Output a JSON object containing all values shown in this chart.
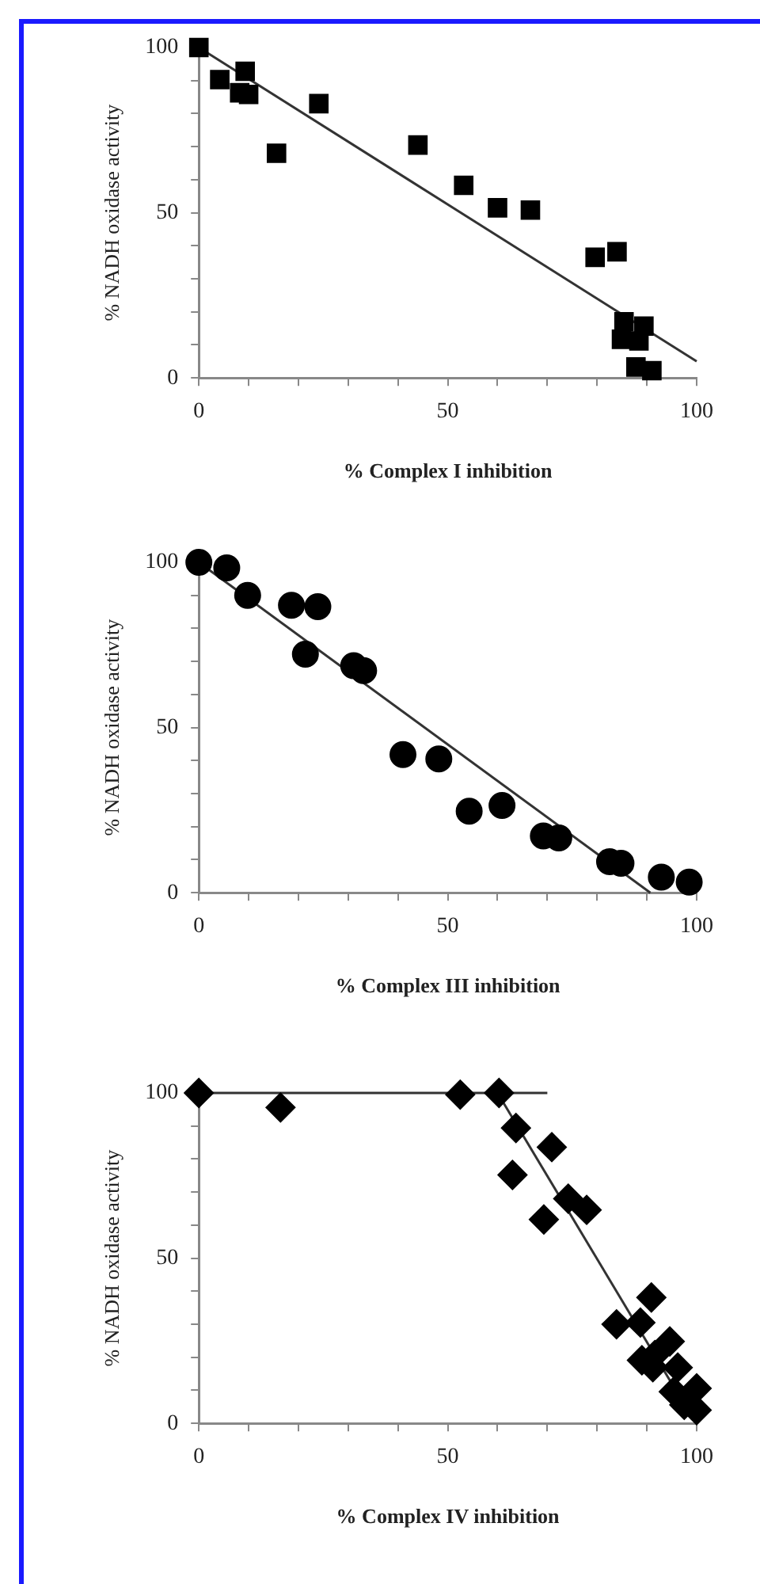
{
  "chart_data": [
    {
      "type": "scatter",
      "xlabel": "% Complex I inhibition",
      "ylabel": "% NADH oxidase activity",
      "xlim": [
        0,
        100
      ],
      "ylim": [
        0,
        100
      ],
      "xticks": [
        0,
        {
          "value": 10,
          "label": null
        },
        {
          "value": 20,
          "label": null
        },
        {
          "value": 30,
          "label": null
        },
        {
          "value": 40,
          "label": null
        },
        50,
        {
          "value": 60,
          "label": null
        },
        {
          "value": 70,
          "label": null
        },
        {
          "value": 80,
          "label": null
        },
        {
          "value": 90,
          "label": null
        },
        100
      ],
      "yticks": [
        0,
        {
          "value": 10,
          "label": null
        },
        {
          "value": 20,
          "label": null
        },
        {
          "value": 30,
          "label": null
        },
        {
          "value": 40,
          "label": null
        },
        50,
        {
          "value": 60,
          "label": null
        },
        {
          "value": 70,
          "label": null
        },
        {
          "value": 80,
          "label": null
        },
        {
          "value": 90,
          "label": null
        },
        100
      ],
      "series": [
        {
          "color": "#000000",
          "marker": "square",
          "x": [
            0,
            4.2,
            9.3,
            8.2,
            10,
            15.6,
            24.1,
            null,
            44,
            53.2,
            60,
            66.6,
            79.6,
            84,
            85.4,
            89.4,
            84.9,
            88.4,
            null,
            87.8,
            91
          ],
          "values": [
            100,
            90.3,
            92.8,
            86.3,
            85.8,
            68,
            83,
            null,
            70.5,
            58.3,
            51.5,
            50.8,
            36.5,
            38.2,
            17,
            15.7,
            11.7,
            11.2,
            null,
            3.3,
            2.2
          ]
        },
        {
          "type": "line",
          "color": "#333333",
          "marker": "none",
          "x": [
            0,
            100
          ],
          "values": [
            100,
            5
          ]
        }
      ]
    },
    {
      "type": "scatter",
      "xlabel": "% Complex III inhibition",
      "ylabel": "% NADH oxidase activity",
      "xlim": [
        0,
        100
      ],
      "ylim": [
        0,
        100
      ],
      "xticks": [
        0,
        {
          "value": 10,
          "label": null
        },
        {
          "value": 20,
          "label": null
        },
        {
          "value": 30,
          "label": null
        },
        {
          "value": 40,
          "label": null
        },
        50,
        {
          "value": 60,
          "label": null
        },
        {
          "value": 70,
          "label": null
        },
        {
          "value": 80,
          "label": null
        },
        {
          "value": 90,
          "label": null
        },
        100
      ],
      "yticks": [
        0,
        {
          "value": 10,
          "label": null
        },
        {
          "value": 20,
          "label": null
        },
        {
          "value": 30,
          "label": null
        },
        {
          "value": 40,
          "label": null
        },
        50,
        {
          "value": 60,
          "label": null
        },
        {
          "value": 70,
          "label": null
        },
        {
          "value": 80,
          "label": null
        },
        {
          "value": 90,
          "label": null
        },
        100
      ],
      "series": [
        {
          "color": "#000000",
          "marker": "circle",
          "x": [
            0,
            5.6,
            9.8,
            18.6,
            23.9,
            21.4,
            31.1,
            33.1,
            41,
            48.2,
            54.3,
            60.9,
            69.2,
            72.3,
            82.5,
            84.8,
            null,
            92.9,
            98.5
          ],
          "values": [
            100,
            98.3,
            90,
            87,
            86.6,
            72.2,
            68.7,
            67.2,
            41.8,
            40.5,
            24.7,
            26.4,
            17.2,
            16.6,
            9.4,
            8.9,
            null,
            4.7,
            3.2
          ]
        },
        {
          "type": "line",
          "color": "#333333",
          "marker": "none",
          "x": [
            0,
            90.7
          ],
          "values": [
            100,
            0
          ]
        }
      ]
    },
    {
      "type": "scatter",
      "xlabel": "% Complex IV inhibition",
      "ylabel": "% NADH oxidase activity",
      "xlim": [
        0,
        100
      ],
      "ylim": [
        0,
        100
      ],
      "xticks": [
        0,
        {
          "value": 10,
          "label": null
        },
        {
          "value": 20,
          "label": null
        },
        {
          "value": 30,
          "label": null
        },
        {
          "value": 40,
          "label": null
        },
        50,
        {
          "value": 60,
          "label": null
        },
        {
          "value": 70,
          "label": null
        },
        {
          "value": 80,
          "label": null
        },
        {
          "value": 90,
          "label": null
        },
        100
      ],
      "yticks": [
        0,
        {
          "value": 10,
          "label": null
        },
        {
          "value": 20,
          "label": null
        },
        {
          "value": 30,
          "label": null
        },
        {
          "value": 40,
          "label": null
        },
        50,
        {
          "value": 60,
          "label": null
        },
        {
          "value": 70,
          "label": null
        },
        {
          "value": 80,
          "label": null
        },
        {
          "value": 90,
          "label": null
        },
        100
      ],
      "series": [
        {
          "color": "#000000",
          "marker": "diamond",
          "x": [
            0,
            16.4,
            52.5,
            60.3,
            63.7,
            63,
            70.9,
            74.2,
            69.3,
            77.9,
            83.9,
            88.7,
            90.9,
            89,
            91.2,
            91.6,
            94.6,
            96.2,
            95.4,
            97.5,
            100,
            100
          ],
          "values": [
            100,
            95.6,
            99.5,
            100,
            89.4,
            75.2,
            83.6,
            68,
            61.7,
            64.6,
            30,
            30.5,
            38.1,
            19.1,
            17,
            20.7,
            24.8,
            16.9,
            9.6,
            5.6,
            10.6,
            4
          ]
        },
        {
          "type": "line",
          "color": "#333333",
          "marker": "none",
          "x": [
            0,
            70
          ],
          "values": [
            100,
            100
          ]
        },
        {
          "type": "line",
          "color": "#333333",
          "marker": "none",
          "x": [
            60,
            99
          ],
          "values": [
            100,
            2
          ]
        }
      ]
    }
  ]
}
